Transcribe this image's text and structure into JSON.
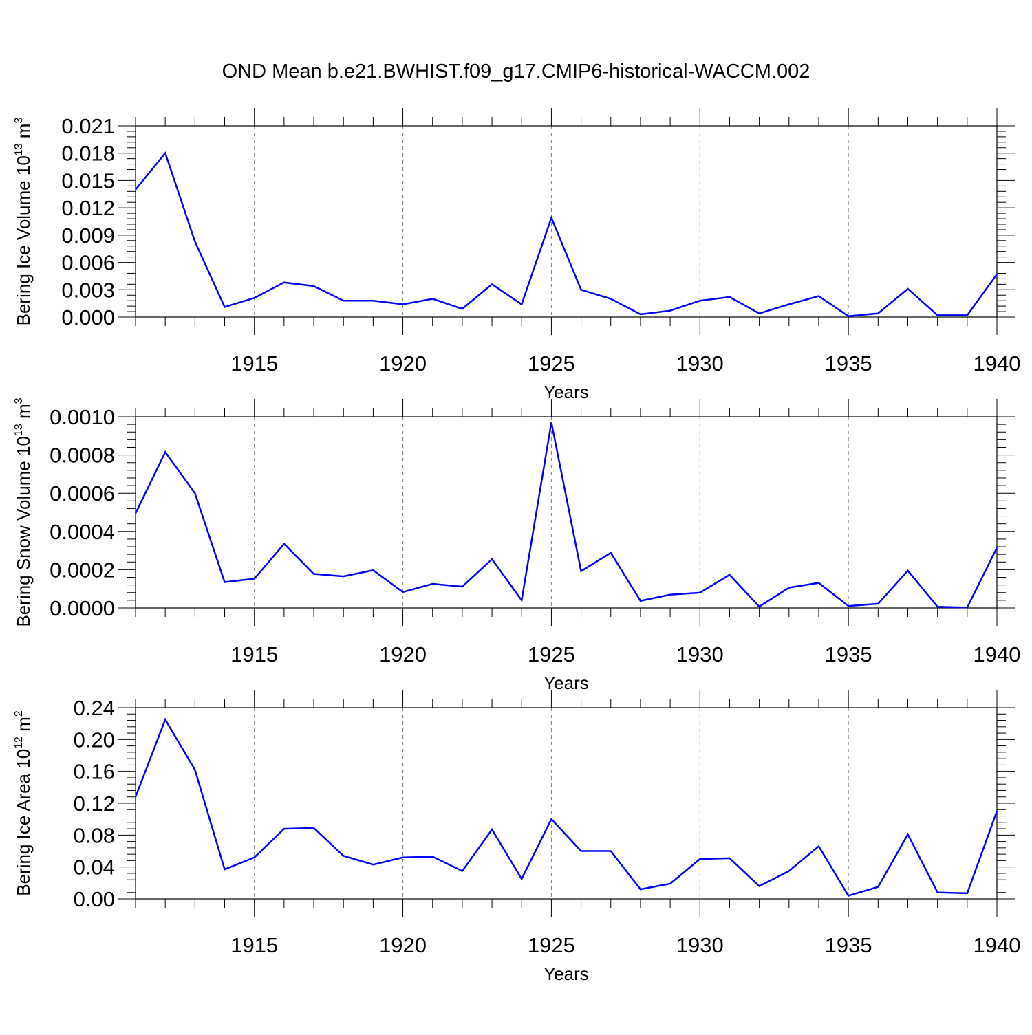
{
  "title": "OND Mean b.e21.BWHIST.f09_g17.CMIP6-historical-WACCM.002",
  "colors": {
    "line": "#0000ff",
    "axis": "#000000",
    "grid": "#7f7f7f"
  },
  "chart_data": [
    {
      "type": "line",
      "xlabel": "Years",
      "ylabel": "Bering Ice Volume 10",
      "ylabel_exp": "13",
      "ylabel_unit": " m",
      "ylabel_unit_exp": "3",
      "xlim": [
        1911,
        1940
      ],
      "ylim": [
        0,
        0.021
      ],
      "x_ticks": [
        1915,
        1920,
        1925,
        1930,
        1935,
        1940
      ],
      "x_tick_labels": [
        "1915",
        "1920",
        "1925",
        "1930",
        "1935",
        "1940"
      ],
      "y_ticks": [
        0,
        0.003,
        0.006,
        0.009,
        0.012,
        0.015,
        0.018,
        0.021
      ],
      "y_tick_labels": [
        "0.000",
        "0.003",
        "0.006",
        "0.009",
        "0.012",
        "0.015",
        "0.018",
        "0.021"
      ],
      "grid": "vertical dashed at major x ticks",
      "x": [
        1911,
        1912,
        1913,
        1914,
        1915,
        1916,
        1917,
        1918,
        1919,
        1920,
        1921,
        1922,
        1923,
        1924,
        1925,
        1926,
        1927,
        1928,
        1929,
        1930,
        1931,
        1932,
        1933,
        1934,
        1935,
        1936,
        1937,
        1938,
        1939,
        1940
      ],
      "values": [
        0.014,
        0.018,
        0.0083,
        0.0011,
        0.0021,
        0.0038,
        0.0034,
        0.0018,
        0.0018,
        0.0014,
        0.002,
        0.0009,
        0.0036,
        0.0014,
        0.0109,
        0.003,
        0.002,
        0.0003,
        0.0007,
        0.0018,
        0.0022,
        0.0004,
        0.0014,
        0.0023,
        0.0001,
        0.0004,
        0.0031,
        0.0002,
        0.0002,
        0.0047
      ]
    },
    {
      "type": "line",
      "xlabel": "Years",
      "ylabel": "Bering Snow Volume 10",
      "ylabel_exp": "13",
      "ylabel_unit": " m",
      "ylabel_unit_exp": "3",
      "xlim": [
        1911,
        1940
      ],
      "ylim": [
        0,
        0.001
      ],
      "x_ticks": [
        1915,
        1920,
        1925,
        1930,
        1935,
        1940
      ],
      "x_tick_labels": [
        "1915",
        "1920",
        "1925",
        "1930",
        "1935",
        "1940"
      ],
      "y_ticks": [
        0,
        0.0002,
        0.0004,
        0.0006,
        0.0008,
        0.001
      ],
      "y_tick_labels": [
        "0.0000",
        "0.0002",
        "0.0004",
        "0.0006",
        "0.0008",
        "0.0010"
      ],
      "grid": "vertical dashed at major x ticks",
      "x": [
        1911,
        1912,
        1913,
        1914,
        1915,
        1916,
        1917,
        1918,
        1919,
        1920,
        1921,
        1922,
        1923,
        1924,
        1925,
        1926,
        1927,
        1928,
        1929,
        1930,
        1931,
        1932,
        1933,
        1934,
        1935,
        1936,
        1937,
        1938,
        1939,
        1940
      ],
      "values": [
        0.000495,
        0.000815,
        0.0006,
        0.000135,
        0.000153,
        0.000335,
        0.000178,
        0.000165,
        0.000197,
        8.3e-05,
        0.000126,
        0.000111,
        0.000255,
        4e-05,
        0.00097,
        0.000192,
        0.000288,
        3.7e-05,
        6.9e-05,
        8e-05,
        0.000173,
        7e-06,
        0.000106,
        0.000131,
        1e-05,
        2.2e-05,
        0.000195,
        6e-06,
        2e-06,
        0.000315
      ]
    },
    {
      "type": "line",
      "xlabel": "Years",
      "ylabel": "Bering Ice Area 10",
      "ylabel_exp": "12",
      "ylabel_unit": " m",
      "ylabel_unit_exp": "2",
      "xlim": [
        1911,
        1940
      ],
      "ylim": [
        0,
        0.24
      ],
      "x_ticks": [
        1915,
        1920,
        1925,
        1930,
        1935,
        1940
      ],
      "x_tick_labels": [
        "1915",
        "1920",
        "1925",
        "1930",
        "1935",
        "1940"
      ],
      "y_ticks": [
        0,
        0.04,
        0.08,
        0.12,
        0.16,
        0.2,
        0.24
      ],
      "y_tick_labels": [
        "0.00",
        "0.04",
        "0.08",
        "0.12",
        "0.16",
        "0.20",
        "0.24"
      ],
      "grid": "vertical dashed at major x ticks",
      "x": [
        1911,
        1912,
        1913,
        1914,
        1915,
        1916,
        1917,
        1918,
        1919,
        1920,
        1921,
        1922,
        1923,
        1924,
        1925,
        1926,
        1927,
        1928,
        1929,
        1930,
        1931,
        1932,
        1933,
        1934,
        1935,
        1936,
        1937,
        1938,
        1939,
        1940
      ],
      "values": [
        0.128,
        0.225,
        0.162,
        0.037,
        0.052,
        0.088,
        0.089,
        0.054,
        0.043,
        0.052,
        0.053,
        0.035,
        0.087,
        0.025,
        0.1,
        0.06,
        0.06,
        0.012,
        0.019,
        0.05,
        0.051,
        0.016,
        0.035,
        0.066,
        0.004,
        0.015,
        0.081,
        0.008,
        0.007,
        0.11
      ]
    }
  ]
}
